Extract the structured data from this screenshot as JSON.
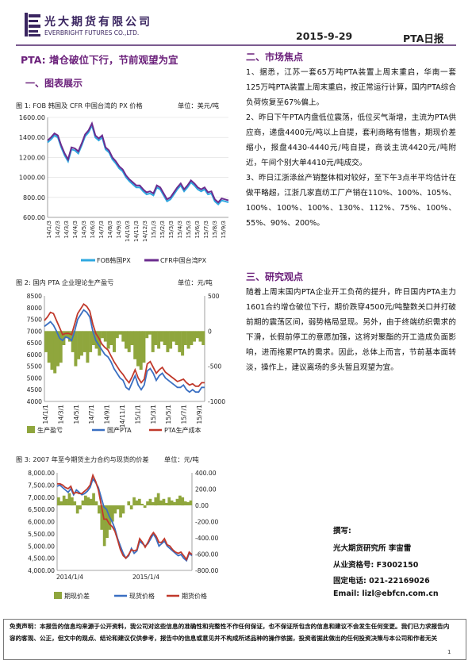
{
  "header": {
    "company_cn": "光大期货有限公司",
    "company_en": "EVERBRIGHT FUTURES CO.,LTD.",
    "date": "2015-9-29",
    "report_type": "PTA日报"
  },
  "title": "PTA: 增仓破位下行，节前观望为宜",
  "sections": {
    "charts_heading": "一、图表展示",
    "market_heading": "二、市场焦点",
    "view_heading": "三、研究观点"
  },
  "figure1": {
    "caption": "图 1: FOB 韩国及 CFR 中国台湾的 PX 价格",
    "unit": "单位：美元/吨"
  },
  "figure2": {
    "caption": "图 2: 国内 PTA 企业理论生产盈亏",
    "unit": "单位：元/吨"
  },
  "figure3": {
    "caption": "图 3: 2007 年至今期货主力合约与现货的价差",
    "unit": "单位：元/吨"
  },
  "chart_data": [
    {
      "type": "line",
      "y_range": [
        600,
        1600
      ],
      "y_ticks": [
        "1600.00",
        "1400.00",
        "1200.00",
        "1000.00",
        "800.00",
        "600.00"
      ],
      "x_tick_labels": [
        "14/1/3",
        "14/2/3",
        "14/3/3",
        "14/4/3",
        "14/5/3",
        "14/6/3",
        "14/7/3",
        "14/8/3",
        "14/9/3",
        "14/10/3",
        "14/11/3",
        "14/12/3",
        "15/1/3",
        "15/2/3",
        "15/3/3",
        "15/4/3",
        "15/5/3",
        "15/6/3",
        "15/7/3",
        "15/8/3",
        "15/9/3"
      ],
      "series": [
        {
          "name": "FOB韩国PX",
          "color": "#2ea8e0",
          "values": [
            1350,
            1380,
            1420,
            1400,
            1300,
            1220,
            1160,
            1280,
            1270,
            1240,
            1320,
            1410,
            1450,
            1520,
            1400,
            1370,
            1400,
            1280,
            1250,
            1180,
            1140,
            1090,
            1060,
            1000,
            960,
            930,
            900,
            900,
            860,
            830,
            840,
            820,
            900,
            880,
            820,
            760,
            780,
            830,
            880,
            920,
            860,
            900,
            950,
            920,
            880,
            860,
            880,
            830,
            840,
            760,
            730,
            770,
            760,
            750
          ]
        },
        {
          "name": "CFR中国台湾PX",
          "color": "#6b2c8e",
          "values": [
            1370,
            1400,
            1440,
            1420,
            1320,
            1240,
            1180,
            1300,
            1290,
            1260,
            1340,
            1430,
            1470,
            1540,
            1420,
            1390,
            1420,
            1300,
            1270,
            1200,
            1160,
            1110,
            1080,
            1020,
            980,
            950,
            920,
            920,
            880,
            850,
            860,
            840,
            920,
            900,
            840,
            780,
            800,
            850,
            900,
            940,
            880,
            920,
            970,
            940,
            900,
            880,
            900,
            850,
            860,
            780,
            750,
            790,
            780,
            770
          ]
        }
      ]
    },
    {
      "type": "line",
      "left_range": [
        4000,
        8500
      ],
      "right_range": [
        -1000,
        500
      ],
      "left_ticks": [
        "8500",
        "8000",
        "7500",
        "7000",
        "6500",
        "6000",
        "5500",
        "5000",
        "4500",
        "4000"
      ],
      "right_ticks": [
        "500",
        "0",
        "-500",
        "-1000"
      ],
      "right_tick_values": [
        500,
        0,
        -500,
        -1000
      ],
      "x_tick_labels": [
        "14/1/1",
        "14/3/1",
        "14/5/1",
        "14/7/1",
        "14/9/1",
        "14/11/1",
        "15/1/1",
        "15/3/1",
        "15/5/1",
        "15/7/1",
        "15/9/1"
      ],
      "series": [
        {
          "name": "生产盈亏",
          "color": "#8fa63d",
          "axis": "right",
          "kind": "area",
          "values": [
            -300,
            -450,
            -550,
            -600,
            -500,
            -450,
            -200,
            -100,
            -150,
            -300,
            -500,
            -400,
            -350,
            -300,
            -450,
            -300,
            -200,
            -250,
            -350,
            -100,
            -150,
            -250,
            -200,
            -300,
            -100,
            -50,
            -150,
            -250,
            -300,
            -200,
            -400,
            -500,
            -550,
            -450,
            -100,
            -50,
            -300,
            -200,
            -250,
            -150,
            -200,
            -300,
            -250,
            -150,
            -200,
            -300,
            -350,
            -200,
            -250,
            -200,
            -150,
            -100,
            -150,
            -200
          ]
        },
        {
          "name": "国产PTA",
          "color": "#3a6fc2",
          "axis": "left",
          "kind": "line",
          "values": [
            7200,
            7300,
            7400,
            7250,
            7000,
            6700,
            6600,
            6750,
            6700,
            6600,
            7000,
            7500,
            7700,
            7900,
            7800,
            7600,
            7000,
            6600,
            6400,
            6200,
            6000,
            5900,
            5700,
            5400,
            5200,
            5000,
            4900,
            4600,
            4500,
            4800,
            5100,
            4700,
            4500,
            4700,
            5300,
            5400,
            5200,
            4900,
            5100,
            5200,
            5000,
            4900,
            4800,
            4700,
            4600,
            4600,
            4700,
            4500,
            4400,
            4500,
            4400,
            4400,
            4600,
            4600
          ]
        },
        {
          "name": "PTA生产成本",
          "color": "#c0392b",
          "axis": "left",
          "kind": "line",
          "values": [
            7450,
            7600,
            7800,
            7750,
            7450,
            7150,
            6850,
            6900,
            6900,
            6850,
            7300,
            7750,
            7950,
            8150,
            8050,
            7850,
            7300,
            6900,
            6700,
            6450,
            6300,
            6200,
            5950,
            5700,
            5500,
            5300,
            5150,
            4950,
            4800,
            5050,
            5350,
            5000,
            4800,
            4950,
            5600,
            5700,
            5450,
            5200,
            5350,
            5450,
            5250,
            5150,
            5050,
            4950,
            4850,
            4900,
            4950,
            4800,
            4700,
            4750,
            4650,
            4650,
            4800,
            4800
          ]
        }
      ]
    },
    {
      "type": "line",
      "left_range": [
        4000,
        8000
      ],
      "right_range": [
        -800,
        400
      ],
      "left_ticks": [
        "8,000.00",
        "7,500.00",
        "7,000.00",
        "6,500.00",
        "6,000.00",
        "5,500.00",
        "5,000.00",
        "4,500.00",
        "4,000.00"
      ],
      "right_ticks": [
        "400.00",
        "200.00",
        "0.00",
        "-200.00",
        "-400.00",
        "-600.00",
        "-800.00"
      ],
      "right_tick_values": [
        400,
        200,
        0,
        -200,
        -400,
        -600,
        -800
      ],
      "x_tick_labels": [
        "2014/1/4",
        "2015/1/4"
      ],
      "series": [
        {
          "name": "期现价差",
          "color": "#8fa63d",
          "axis": "right",
          "kind": "area",
          "values": [
            100,
            50,
            120,
            80,
            150,
            100,
            50,
            -100,
            -50,
            60,
            120,
            100,
            80,
            150,
            50,
            -100,
            -300,
            -500,
            -400,
            -300,
            -200,
            -100,
            -50,
            -150,
            -100,
            0,
            50,
            -50,
            100,
            60,
            80,
            20,
            -30,
            50,
            80,
            40,
            100,
            150,
            60,
            80,
            30,
            100,
            60,
            40,
            80,
            120,
            100,
            50,
            40,
            60
          ]
        },
        {
          "name": "现货价格",
          "color": "#3a6fc2",
          "axis": "left",
          "kind": "line",
          "values": [
            7450,
            7500,
            7400,
            7300,
            7200,
            7350,
            7100,
            7300,
            7200,
            7100,
            7150,
            7250,
            7400,
            7750,
            7600,
            7400,
            7000,
            6600,
            6500,
            6200,
            6000,
            5700,
            5300,
            5000,
            4700,
            4500,
            4600,
            4900,
            4700,
            4800,
            5200,
            5100,
            5000,
            5100,
            5300,
            5500,
            5300,
            5000,
            5100,
            5200,
            5000,
            4900,
            4800,
            4700,
            4600,
            4650,
            4500,
            4400,
            4700,
            4600
          ]
        },
        {
          "name": "期货价格",
          "color": "#c0392b",
          "axis": "left",
          "kind": "line",
          "values": [
            7550,
            7550,
            7500,
            7400,
            7350,
            7450,
            7150,
            7200,
            7150,
            7150,
            7250,
            7350,
            7500,
            7900,
            7650,
            7300,
            6700,
            6100,
            6100,
            5900,
            5800,
            5600,
            5250,
            4850,
            4600,
            4500,
            4650,
            4850,
            4800,
            4850,
            5300,
            5150,
            4950,
            5150,
            5400,
            5550,
            5400,
            5150,
            5150,
            5300,
            5050,
            5000,
            4850,
            4750,
            4700,
            4750,
            4600,
            4450,
            4750,
            4650
          ]
        }
      ]
    }
  ],
  "market_focus": [
    "1、据悉，江苏一套65万吨PTA装置上周末重启，华南一套125万吨PTA装置上周末重启，按正常运行计算，国内PTA综合负荷恢复至67%偏上。",
    "2、昨日下午PTA内盘低位震荡，低位买气渐增，主流为PTA供应商，递盘4400元/吨以上自提，套利商略有惜售，期现价差缩小，报盘4430-4440元/吨自提，商谈主流4420元/吨附近，午间个别大单4410元/吨成交。",
    "3、昨日江浙涤丝产销整体相对较好，至下午3点半平均估计在做平略超，江浙几家直纺工厂产销在110%、100%、105%、100%、100%、100%、130%、112%、75%、100%、55%、90%、200%。"
  ],
  "research_view": "随着上周末国内PTA企业开工负荷的提升，昨日国内PTA主力1601合约增仓破位下行，期价跌穿4500元/吨整数关口并打破前期的震荡区间，弱势格局显现。另外，由于终端纺织需求的下滑，长假前停工的意愿加强，这将对聚酯的开工造成负面影响，进而拖累PTA的需求。因此，总体上而言，节前基本面转淡，操作上，建议离场的多头暂且观望为宜。",
  "author": {
    "heading": "撰写:",
    "name_line": "光大期货研究所 李宙雷",
    "license": "从业资格号: F3002150",
    "phone": "固定电话: 021-22169026",
    "email": "Email: lizl@ebfcn.com.cn"
  },
  "footer": {
    "disclaimer": "免责声明：本报告的信息均来源于公开资料，我公司对这些信息的准确性和完整性不作任何保证，也不保证所包含的信息和建议不会发生任何变更。我们已力求报告内容的客观、公正，但文中的观点、结论和建议仅供参考，报告中的信息或意见并不构成所述品种的操作依据，投资者据此做出的任何投资决策与本公司和作者无关",
    "page_number": "1"
  }
}
